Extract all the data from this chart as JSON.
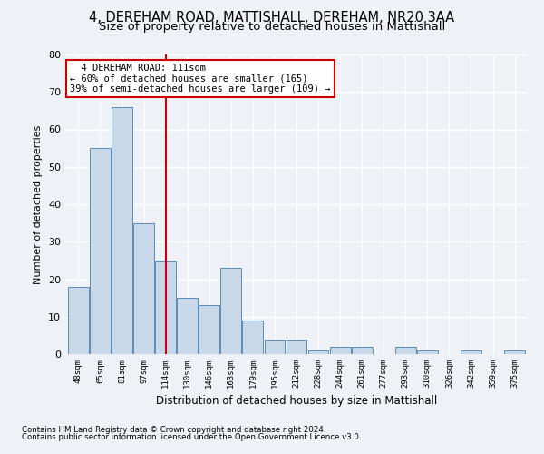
{
  "title1": "4, DEREHAM ROAD, MATTISHALL, DEREHAM, NR20 3AA",
  "title2": "Size of property relative to detached houses in Mattishall",
  "xlabel": "Distribution of detached houses by size in Mattishall",
  "ylabel": "Number of detached properties",
  "categories": [
    "48sqm",
    "65sqm",
    "81sqm",
    "97sqm",
    "114sqm",
    "130sqm",
    "146sqm",
    "163sqm",
    "179sqm",
    "195sqm",
    "212sqm",
    "228sqm",
    "244sqm",
    "261sqm",
    "277sqm",
    "293sqm",
    "310sqm",
    "326sqm",
    "342sqm",
    "359sqm",
    "375sqm"
  ],
  "values": [
    18,
    55,
    66,
    35,
    25,
    15,
    13,
    23,
    9,
    4,
    4,
    1,
    2,
    2,
    0,
    2,
    1,
    0,
    1,
    0,
    1
  ],
  "bar_color": "#c8d8e8",
  "bar_edge_color": "#5b8db8",
  "vline_x": 4,
  "vline_color": "#cc0000",
  "annotation_line1": "  4 DEREHAM ROAD: 111sqm",
  "annotation_line2": "← 60% of detached houses are smaller (165)",
  "annotation_line3": "39% of semi-detached houses are larger (109) →",
  "annotation_box_color": "#ffffff",
  "annotation_box_edge": "#cc0000",
  "ylim": [
    0,
    80
  ],
  "yticks": [
    0,
    10,
    20,
    30,
    40,
    50,
    60,
    70,
    80
  ],
  "footer1": "Contains HM Land Registry data © Crown copyright and database right 2024.",
  "footer2": "Contains public sector information licensed under the Open Government Licence v3.0.",
  "bg_color": "#eef2f7",
  "grid_color": "#ffffff",
  "title1_fontsize": 10.5,
  "title2_fontsize": 9.5,
  "xlabel_fontsize": 8.5,
  "ylabel_fontsize": 8
}
